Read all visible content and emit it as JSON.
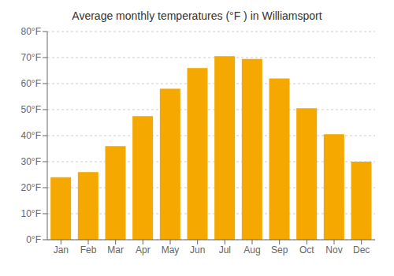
{
  "chart_data": {
    "type": "bar",
    "title": "Average monthly temperatures (°F ) in Williamsport",
    "categories": [
      "Jan",
      "Feb",
      "Mar",
      "Apr",
      "May",
      "Jun",
      "Jul",
      "Aug",
      "Sep",
      "Oct",
      "Nov",
      "Dec"
    ],
    "values": [
      24,
      26,
      36,
      47.5,
      58,
      66,
      70.5,
      69.5,
      62,
      50.5,
      40.5,
      30
    ],
    "color": "#F5A800",
    "ylim": [
      0,
      80
    ],
    "yticks": [
      {
        "value": 0,
        "label": "0°F"
      },
      {
        "value": 10,
        "label": "10°F"
      },
      {
        "value": 20,
        "label": "20°F"
      },
      {
        "value": 30,
        "label": "30°F"
      },
      {
        "value": 40,
        "label": "40°F"
      },
      {
        "value": 50,
        "label": "50°F"
      },
      {
        "value": 60,
        "label": "60°F"
      },
      {
        "value": 70,
        "label": "70°F"
      },
      {
        "value": 80,
        "label": "80°F"
      }
    ],
    "grid": true
  }
}
